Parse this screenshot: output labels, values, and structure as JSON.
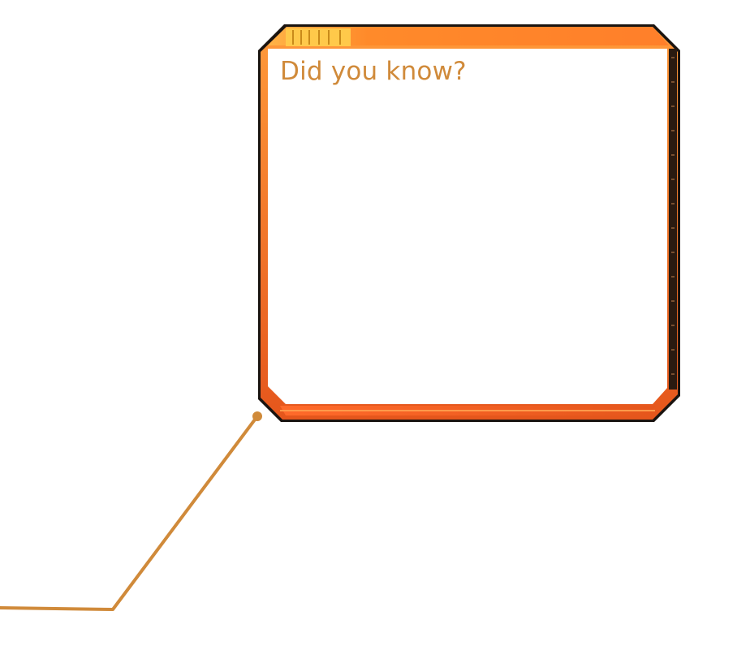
{
  "panel": {
    "title": "Did you know?",
    "body": ""
  },
  "colors": {
    "accent": "#ff7f2a",
    "accent_dark": "#e5561c",
    "frame_dark": "#1a1410",
    "title_text": "#d08a3a",
    "leader_line": "#d08a3a"
  },
  "icons": {
    "leader_dot": "leader-dot-icon",
    "header_grip": "header-grip-icon"
  }
}
